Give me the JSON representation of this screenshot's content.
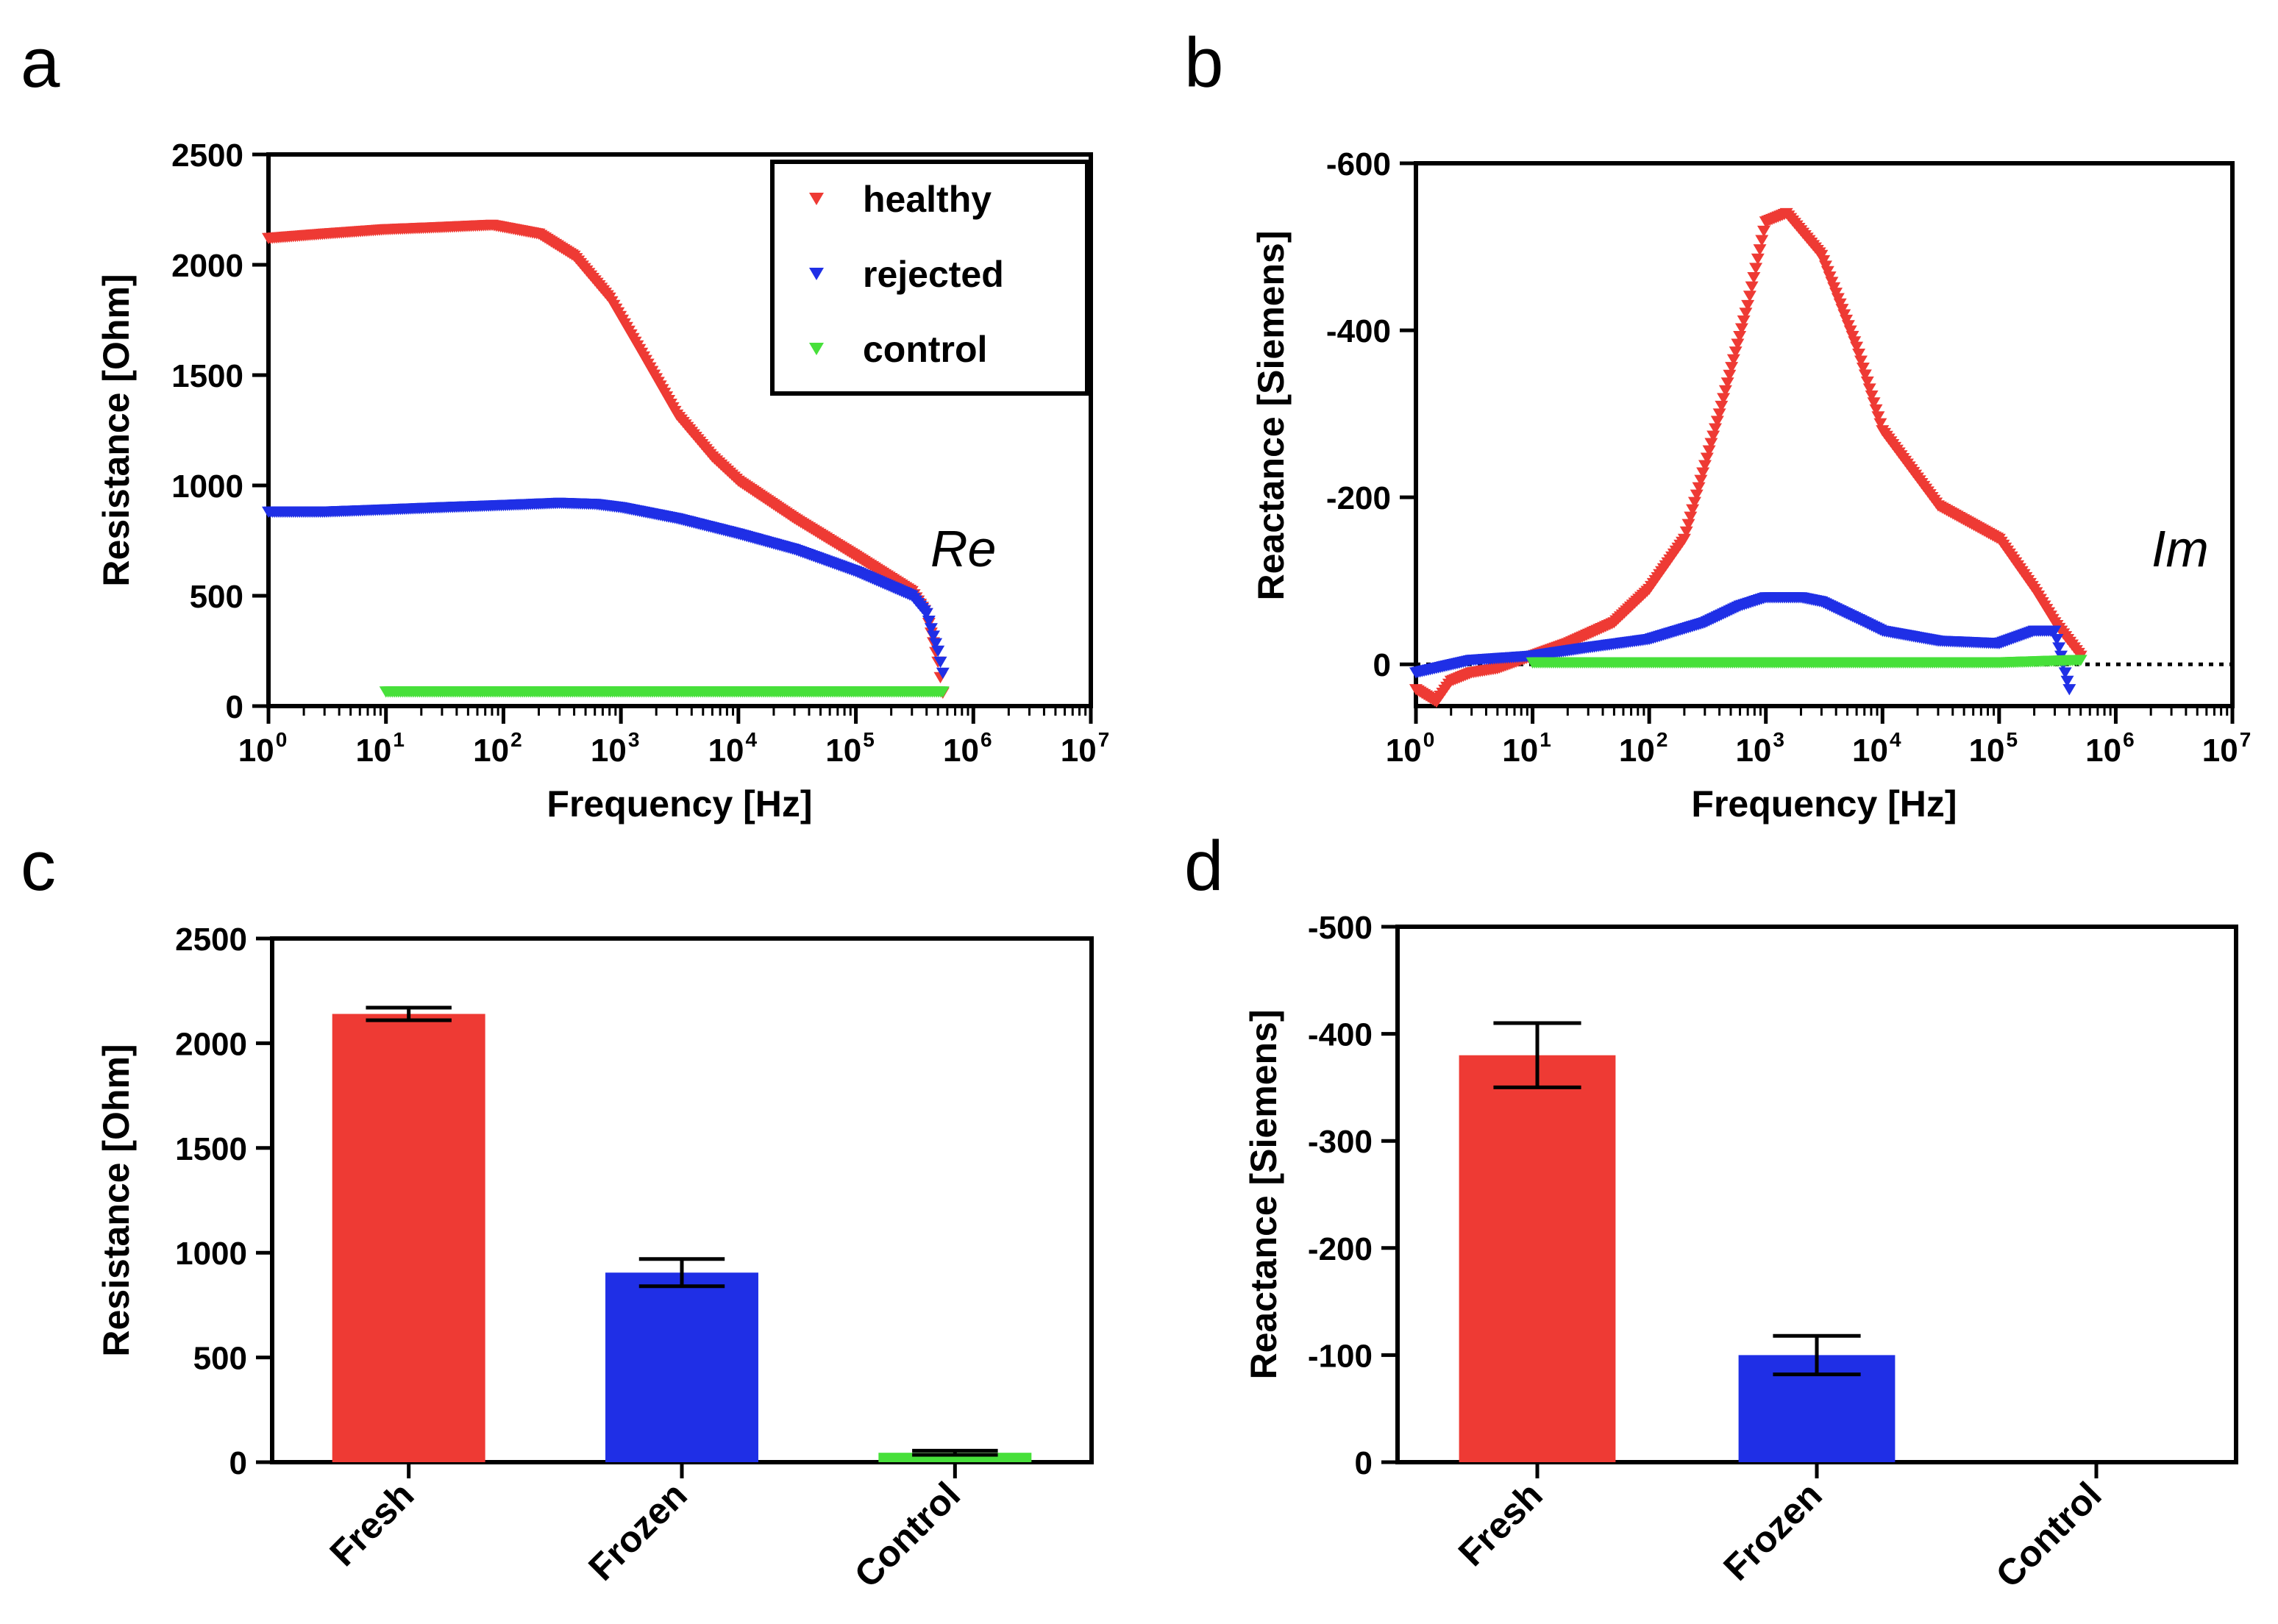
{
  "panels": {
    "a": "a",
    "b": "b",
    "c": "c",
    "d": "d"
  },
  "colors": {
    "healthy": "#ee3a34",
    "rejected": "#1f2fe6",
    "control": "#47e03a"
  },
  "chart_data": [
    {
      "id": "a",
      "type": "scatter",
      "xscale": "log",
      "xlabel": "Frequency [Hz]",
      "ylabel": "Resistance [Ohm]",
      "xlim": [
        1,
        10000000
      ],
      "ylim": [
        0,
        2500
      ],
      "yticks": [
        0,
        500,
        1000,
        1500,
        2000,
        2500
      ],
      "xtick_exponents": [
        0,
        1,
        2,
        3,
        4,
        5,
        6,
        7
      ],
      "xtick_base": "10",
      "annotation": "Re",
      "legend": [
        "healthy",
        "rejected",
        "control"
      ],
      "legend_position": "top-right",
      "series": [
        {
          "name": "healthy",
          "x": [
            1,
            3,
            10,
            30,
            80,
            200,
            400,
            800,
            1500,
            3000,
            6000,
            10000,
            30000,
            100000,
            300000,
            400000,
            500000,
            550000
          ],
          "y": [
            2120,
            2140,
            2160,
            2170,
            2180,
            2140,
            2040,
            1850,
            1600,
            1320,
            1130,
            1020,
            850,
            680,
            520,
            420,
            200,
            60
          ]
        },
        {
          "name": "rejected",
          "x": [
            1,
            3,
            10,
            30,
            100,
            300,
            600,
            1000,
            3000,
            10000,
            30000,
            100000,
            300000,
            400000,
            500000,
            550000
          ],
          "y": [
            880,
            880,
            890,
            900,
            910,
            920,
            915,
            900,
            850,
            780,
            710,
            610,
            500,
            420,
            250,
            150
          ]
        },
        {
          "name": "control",
          "x": [
            10,
            100,
            1000,
            10000,
            100000,
            550000
          ],
          "y": [
            65,
            65,
            65,
            65,
            65,
            65
          ]
        }
      ]
    },
    {
      "id": "b",
      "type": "scatter",
      "xscale": "log",
      "xlabel": "Frequency [Hz]",
      "ylabel": "Reactance [Siemens]",
      "xlim": [
        1,
        10000000
      ],
      "ylim": [
        50,
        -600
      ],
      "yticks": [
        0,
        -200,
        -400,
        -600
      ],
      "xtick_exponents": [
        0,
        1,
        2,
        3,
        4,
        5,
        6,
        7
      ],
      "xtick_base": "10",
      "annotation": "Im",
      "zero_line": true,
      "series": [
        {
          "name": "healthy",
          "x": [
            1,
            1.5,
            2,
            3,
            5,
            10,
            20,
            50,
            100,
            200,
            400,
            700,
            1000,
            1500,
            3000,
            6000,
            10000,
            30000,
            100000,
            200000,
            300000,
            500000
          ],
          "y": [
            30,
            45,
            20,
            10,
            5,
            -10,
            -25,
            -50,
            -90,
            -150,
            -300,
            -430,
            -530,
            -540,
            -490,
            -380,
            -280,
            -190,
            -150,
            -90,
            -50,
            -10
          ]
        },
        {
          "name": "rejected",
          "x": [
            1,
            3,
            10,
            30,
            100,
            300,
            600,
            1000,
            2000,
            3000,
            6000,
            10000,
            30000,
            100000,
            200000,
            300000,
            400000
          ],
          "y": [
            10,
            -5,
            -10,
            -20,
            -30,
            -50,
            -70,
            -80,
            -80,
            -75,
            -55,
            -40,
            -28,
            -25,
            -40,
            -40,
            30
          ]
        },
        {
          "name": "control",
          "x": [
            10,
            100,
            1000,
            10000,
            100000,
            500000
          ],
          "y": [
            -2,
            -2,
            -2,
            -2,
            -2,
            -5
          ]
        }
      ]
    },
    {
      "id": "c",
      "type": "bar",
      "ylabel": "Resistance [Ohm]",
      "ylim": [
        0,
        2500
      ],
      "yticks": [
        0,
        500,
        1000,
        1500,
        2000,
        2500
      ],
      "categories": [
        "Fresh",
        "Frozen",
        "Control"
      ],
      "values": [
        2140,
        905,
        45
      ],
      "errors": [
        30,
        65,
        10
      ],
      "bar_colors": [
        "healthy",
        "rejected",
        "control"
      ]
    },
    {
      "id": "d",
      "type": "bar",
      "ylabel": "Reactance [Siemens]",
      "ylim": [
        0,
        -500
      ],
      "yticks": [
        0,
        -100,
        -200,
        -300,
        -400,
        -500
      ],
      "categories": [
        "Fresh",
        "Frozen",
        "Control"
      ],
      "values": [
        -380,
        -100,
        0
      ],
      "errors": [
        30,
        18,
        0
      ],
      "bar_colors": [
        "healthy",
        "rejected",
        "control"
      ]
    }
  ]
}
